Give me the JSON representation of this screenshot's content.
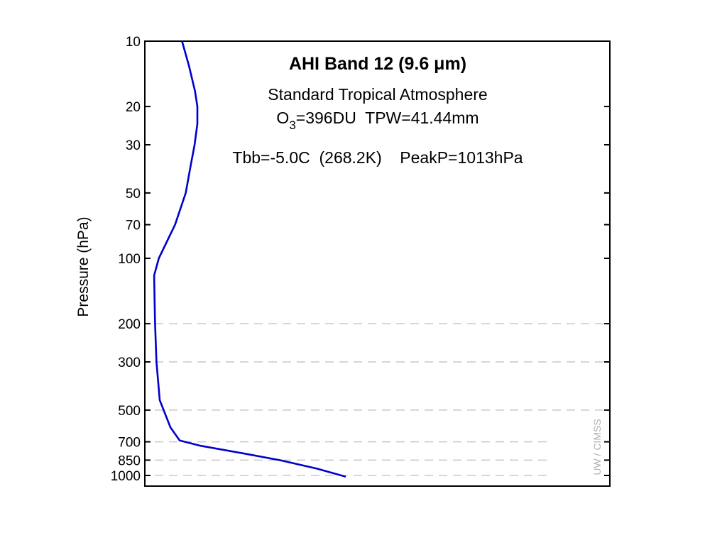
{
  "chart_data": {
    "type": "line",
    "title": "AHI Band 12 (9.6 μm)",
    "subtitle_1": "Standard Tropical Atmosphere",
    "subtitle_2_pre": "O",
    "subtitle_2_sub": "3",
    "subtitle_2_post": "=396DU  TPW=41.44mm",
    "subtitle_3": "Tbb=-5.0C  (268.2K)    PeakP=1013hPa",
    "ylabel": "Pressure (hPa)",
    "xlabel": "",
    "y_scale": "log",
    "y_inverted": true,
    "ylim": [
      10,
      1000
    ],
    "y_ticks": [
      10,
      20,
      30,
      50,
      70,
      100,
      200,
      300,
      500,
      700,
      850,
      1000
    ],
    "y_tick_labels": [
      "10",
      "20",
      "30",
      "50",
      "70",
      "100",
      "200",
      "300",
      "500",
      "700",
      "850",
      "1000"
    ],
    "xlim": [
      0,
      1
    ],
    "x_ticks_shown": false,
    "grid": "dashed horizontal at 200, 300, 500, 700, 850, 1000",
    "gridlines": [
      200,
      300,
      500,
      700,
      850,
      1000
    ],
    "series": [
      {
        "color": "#0000cc",
        "points": [
          {
            "x": 0.08,
            "p": 10
          },
          {
            "x": 0.095,
            "p": 13
          },
          {
            "x": 0.108,
            "p": 17
          },
          {
            "x": 0.113,
            "p": 20
          },
          {
            "x": 0.113,
            "p": 24
          },
          {
            "x": 0.107,
            "p": 30
          },
          {
            "x": 0.098,
            "p": 38
          },
          {
            "x": 0.088,
            "p": 50
          },
          {
            "x": 0.065,
            "p": 70
          },
          {
            "x": 0.03,
            "p": 100
          },
          {
            "x": 0.02,
            "p": 120
          },
          {
            "x": 0.022,
            "p": 200
          },
          {
            "x": 0.025,
            "p": 300
          },
          {
            "x": 0.032,
            "p": 450
          },
          {
            "x": 0.055,
            "p": 600
          },
          {
            "x": 0.075,
            "p": 690
          },
          {
            "x": 0.12,
            "p": 730
          },
          {
            "x": 0.21,
            "p": 790
          },
          {
            "x": 0.29,
            "p": 850
          },
          {
            "x": 0.37,
            "p": 930
          },
          {
            "x": 0.432,
            "p": 1013
          }
        ]
      }
    ],
    "watermark": "UW / CIMSS"
  }
}
